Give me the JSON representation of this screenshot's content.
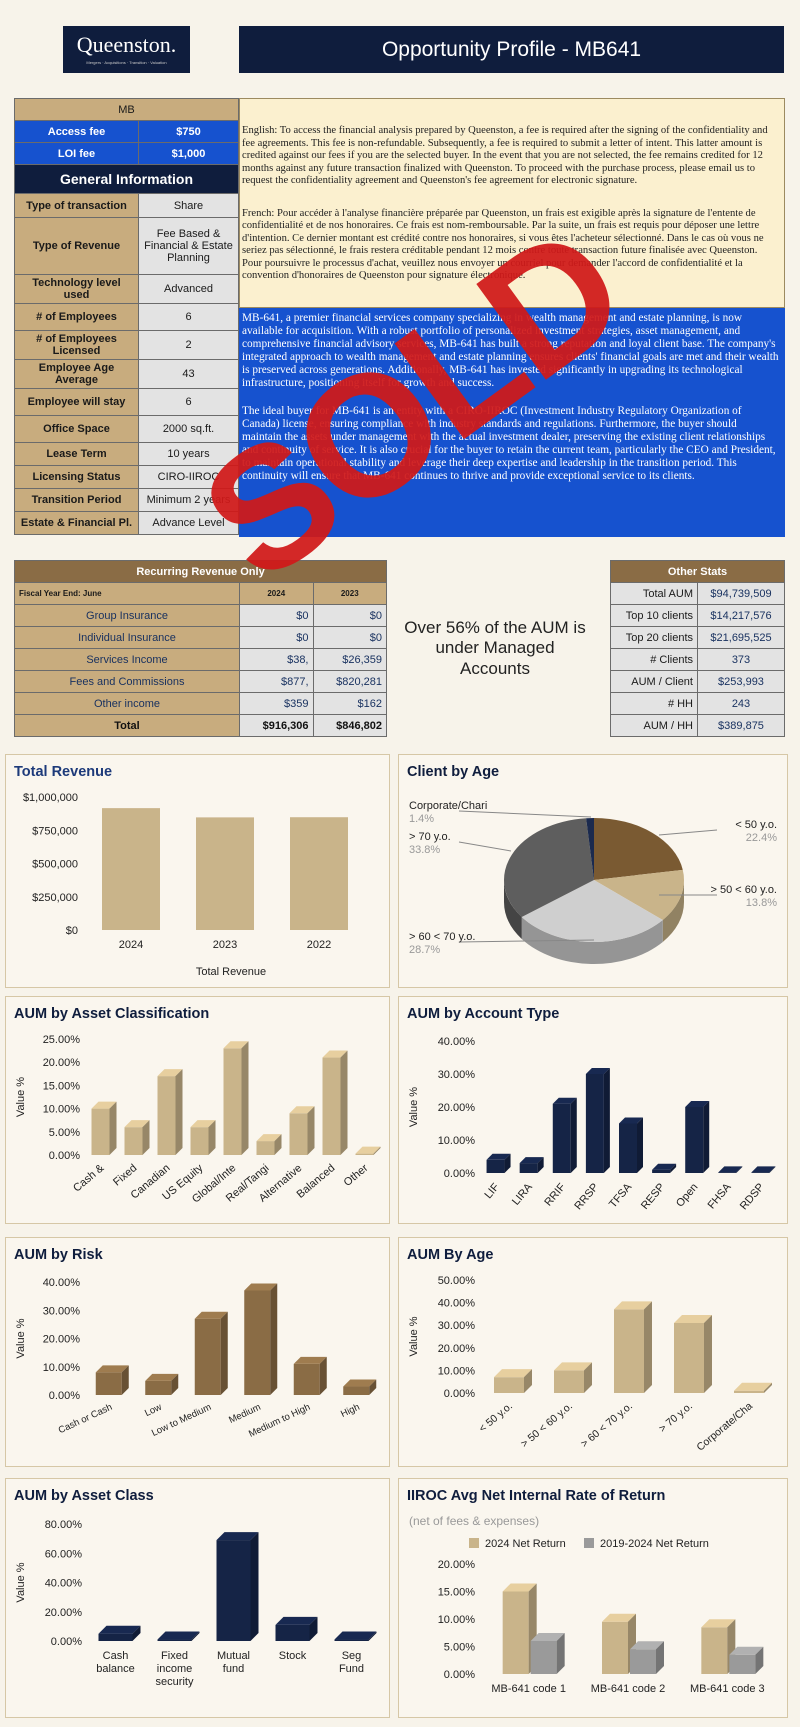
{
  "header": {
    "logo_text": "Queenston.",
    "logo_tagline": "Mergers · Acquisitions · Transition · Valuation",
    "title": "Opportunity Profile - MB641"
  },
  "fees": {
    "code": "MB",
    "access_label": "Access fee",
    "access_value": "$750",
    "loi_label": "LOI fee",
    "loi_value": "$1,000"
  },
  "general_info": {
    "heading": "General Information",
    "rows": [
      {
        "label": "Type of transaction",
        "value": "Share"
      },
      {
        "label": "Type of Revenue",
        "value": "Fee Based & Financial & Estate Planning"
      },
      {
        "label": "Technology level used",
        "value": "Advanced"
      },
      {
        "label": "# of Employees",
        "value": "6"
      },
      {
        "label": "# of Employees Licensed",
        "value": "2"
      },
      {
        "label": "Employee Age Average",
        "value": "43"
      },
      {
        "label": "Employee will stay",
        "value": "6"
      },
      {
        "label": "Office Space",
        "value": "2000 sq.ft."
      },
      {
        "label": "Lease Term",
        "value": "10 years"
      },
      {
        "label": "Licensing Status",
        "value": "CIRO-IIROC"
      },
      {
        "label": "Transition Period",
        "value": "Minimum 2 years"
      },
      {
        "label": "Estate & Financial Pl.",
        "value": "Advance Level"
      }
    ]
  },
  "fee_text": {
    "english": "English: To access the financial analysis prepared by Queenston, a fee is required after the signing of the confidentiality and fee agreements. This fee is non-refundable. Subsequently, a fee is required to submit a letter of intent. This latter amount is credited against our fees if you are the selected buyer. In the event that you are not selected, the fee remains credited for 12 months against any future transaction finalized with Queenston. To proceed with the purchase process, please email us to request the confidentiality agreement and Queenston's fee agreement for electronic signature.",
    "french": "French: Pour accéder à l'analyse financière préparée par Queenston, un frais est exigible après la signature de l'entente de confidentialité et de nos honoraires. Ce frais est nom-remboursable. Par la suite, un frais est requis pour déposer une lettre d'intention. Ce dernier montant est crédité contre nos honoraires, si vous êtes l'acheteur sélectionné. Dans le cas où vous ne seriez pas sélectionné, le frais restera créditable pendant 12 mois contre toute transaction future finalisée avec Queenston. Pour poursuivre le processus d'achat, veuillez nous envoyer un courriel pour demander l'accord de confidentialité et la convention d'honoraires de Queenston pour signature électronique."
  },
  "description": {
    "p1": "MB-641, a premier financial services company specializing in wealth management and estate planning, is now available for acquisition. With a robust portfolio of personalized investment strategies, asset management, and comprehensive financial advisory services, MB-641 has built a strong reputation and loyal client base. The company's integrated approach to wealth management and estate planning ensures clients' financial goals are met and their wealth is preserved across generations. Additionally, MB-641 has invested significantly in upgrading its technological infrastructure, positioning itself for growth and success.",
    "p2": "The ideal buyer for MB-641 is an entity with a CIRO-IIROC (Investment Industry Regulatory Organization of Canada) license, ensuring compliance with industry standards and regulations. Furthermore, the buyer should maintain the assets under management with the actual investment dealer, preserving the existing client relationships and continuity of service. It is also crucial for the buyer to retain the current team, particularly the CEO and President, to maintain operational stability and leverage their deep expertise and leadership in the transition period. This continuity will ensure that MB-641 continues to thrive and provide exceptional service to its clients."
  },
  "sold_stamp": "SOLD",
  "recurring": {
    "heading": "Recurring Revenue Only",
    "fy_label": "Fiscal Year End: June",
    "years": [
      "2024",
      "2023"
    ],
    "rows": [
      {
        "label": "Group Insurance",
        "v2024": "$0",
        "v2023": "$0"
      },
      {
        "label": "Individual Insurance",
        "v2024": "$0",
        "v2023": "$0"
      },
      {
        "label": "Services Income",
        "v2024": "$38,",
        "v2023": "$26,359"
      },
      {
        "label": "Fees and Commissions",
        "v2024": "$877,",
        "v2023": "$820,281"
      },
      {
        "label": "Other income",
        "v2024": "$359",
        "v2023": "$162"
      }
    ],
    "total_label": "Total",
    "total_2024": "$916,306",
    "total_2023": "$846,802"
  },
  "aum_note": "Over 56% of the AUM is under Managed Accounts",
  "other_stats": {
    "heading": "Other Stats",
    "rows": [
      {
        "label": "Total AUM",
        "value": "$94,739,509"
      },
      {
        "label": "Top 10 clients",
        "value": "$14,217,576"
      },
      {
        "label": "Top 20 clients",
        "value": "$21,695,525"
      },
      {
        "label": "# Clients",
        "value": "373"
      },
      {
        "label": "AUM / Client",
        "value": "$253,993"
      },
      {
        "label": "# HH",
        "value": "243"
      },
      {
        "label": "AUM / HH",
        "value": "$389,875"
      }
    ]
  },
  "chart_data": [
    {
      "id": "total_revenue",
      "type": "bar",
      "title": "Total Revenue",
      "xlabel": "Total Revenue",
      "ylabel": "",
      "categories": [
        "2024",
        "2023",
        "2022"
      ],
      "values": [
        916306,
        846802,
        848000
      ],
      "ylim": [
        0,
        1000000
      ],
      "yticks": [
        "$0",
        "$250,000",
        "$500,000",
        "$750,000",
        "$1,000,000"
      ],
      "colors": [
        "#c9b48a"
      ]
    },
    {
      "id": "client_by_age",
      "type": "pie",
      "title": "Client by Age",
      "slices": [
        {
          "label": "< 50 y.o.",
          "pct": "22.4%",
          "value": 22.4,
          "color": "#7a5a32"
        },
        {
          "label": "> 50 < 60 y.o.",
          "pct": "13.8%",
          "value": 13.8,
          "color": "#c9b48a"
        },
        {
          "label": "> 60 < 70 y.o.",
          "pct": "28.7%",
          "value": 28.7,
          "color": "#cfcfcf"
        },
        {
          "label": "> 70 y.o.",
          "pct": "33.8%",
          "value": 33.8,
          "color": "#5e5e5e"
        },
        {
          "label": "Corporate/Chari",
          "pct": "1.4%",
          "value": 1.4,
          "color": "#1b2a4e"
        }
      ]
    },
    {
      "id": "aum_asset_classification",
      "type": "bar",
      "title": "AUM by Asset Classification",
      "ylabel": "Value %",
      "categories": [
        "Cash &",
        "Fixed",
        "Canadian",
        "US Equity",
        "Global/Inte",
        "Real/Tangi",
        "Alternative",
        "Balanced",
        "Other"
      ],
      "values": [
        10,
        6,
        17,
        6,
        23,
        3,
        9,
        21,
        0.3
      ],
      "yticks": [
        "0.00%",
        "5.00%",
        "10.00%",
        "15.00%",
        "20.00%",
        "25.00%"
      ],
      "ylim": [
        0,
        25
      ],
      "colors": [
        "#c9b48a"
      ]
    },
    {
      "id": "aum_account_type",
      "type": "bar",
      "title": "AUM by Account Type",
      "ylabel": "Value %",
      "categories": [
        "LIF",
        "LIRA",
        "RRIF",
        "RRSP",
        "TFSA",
        "RESP",
        "Open",
        "FHSA",
        "RDSP"
      ],
      "values": [
        4,
        3,
        21,
        30,
        15,
        1,
        20,
        0.2,
        0.2
      ],
      "yticks": [
        "0.00%",
        "10.00%",
        "20.00%",
        "30.00%",
        "40.00%"
      ],
      "ylim": [
        0,
        40
      ],
      "colors": [
        "#152446"
      ]
    },
    {
      "id": "aum_risk",
      "type": "bar",
      "title": "AUM by Risk",
      "ylabel": "Value %",
      "categories": [
        "Cash or Cash",
        "Low",
        "Low to Medium",
        "Medium",
        "Medium to High",
        "High"
      ],
      "values": [
        8,
        5,
        27,
        37,
        11,
        3
      ],
      "yticks": [
        "0.00%",
        "10.00%",
        "20.00%",
        "30.00%",
        "40.00%"
      ],
      "ylim": [
        0,
        40
      ],
      "colors": [
        "#8a6c45"
      ]
    },
    {
      "id": "aum_by_age",
      "type": "bar",
      "title": "AUM By Age",
      "ylabel": "Value %",
      "categories": [
        "< 50 y.o.",
        "> 50 < 60 y.o.",
        "> 60 < 70 y.o.",
        "> 70 y.o.",
        "Corporate/Cha"
      ],
      "values": [
        7,
        10,
        37,
        31,
        1
      ],
      "yticks": [
        "0.00%",
        "10.00%",
        "20.00%",
        "30.00%",
        "40.00%",
        "50.00%"
      ],
      "ylim": [
        0,
        50
      ],
      "colors": [
        "#c9b48a"
      ]
    },
    {
      "id": "aum_asset_class",
      "type": "bar",
      "title": "AUM by Asset Class",
      "ylabel": "Value %",
      "categories": [
        "Cash balance",
        "Fixed income security",
        "Mutual fund",
        "Stock",
        "Seg Fund"
      ],
      "values": [
        5,
        1,
        69,
        11,
        1
      ],
      "yticks": [
        "0.00%",
        "20.00%",
        "40.00%",
        "60.00%",
        "80.00%"
      ],
      "ylim": [
        0,
        80
      ],
      "colors": [
        "#152446"
      ]
    },
    {
      "id": "iiroc_return",
      "type": "bar",
      "title": "IIROC Avg Net Internal Rate of Return",
      "subtitle": "(net of fees & expenses)",
      "categories": [
        "MB-641 code 1",
        "MB-641 code 2",
        "MB-641 code 3"
      ],
      "series": [
        {
          "name": "2024 Net Return",
          "values": [
            15,
            9.5,
            8.5
          ],
          "color": "#c9b48a"
        },
        {
          "name": "2019-2024 Net Return",
          "values": [
            6,
            4.5,
            3.5
          ],
          "color": "#9a9a9a"
        }
      ],
      "yticks": [
        "0.00%",
        "5.00%",
        "10.00%",
        "15.00%",
        "20.00%"
      ],
      "ylim": [
        0,
        20
      ]
    }
  ]
}
